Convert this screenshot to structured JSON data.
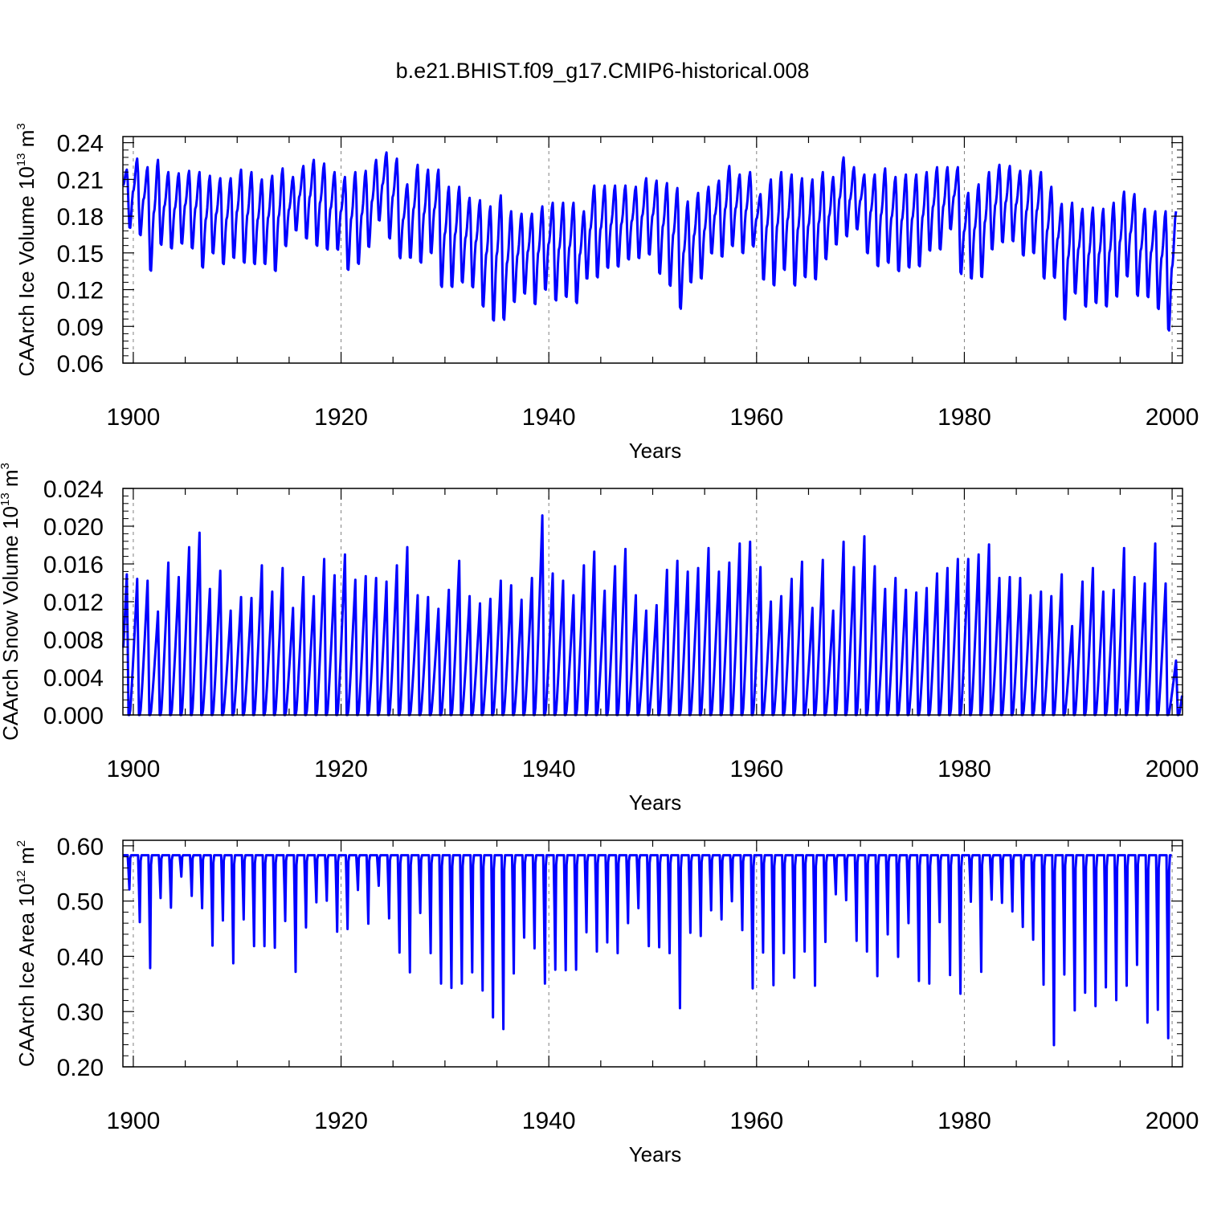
{
  "title": "b.e21.BHIST.f09_g17.CMIP6-historical.008",
  "colors": {
    "series": "#0000ff",
    "axis": "#000000",
    "grid": "#808080"
  },
  "chart_data": [
    {
      "id": "ice-volume",
      "type": "line",
      "ylabel": {
        "text": "CAArch Ice Volume 10",
        "exp": "13",
        "unit": " m",
        "unit_exp": "3"
      },
      "xlabel": "Years",
      "xlim": [
        1899.0,
        2001.0
      ],
      "ylim": [
        0.06,
        0.245
      ],
      "yticks": [
        0.06,
        0.09,
        0.12,
        0.15,
        0.18,
        0.21,
        0.24
      ],
      "ytick_labels": [
        "0.06",
        "0.09",
        "0.12",
        "0.15",
        "0.18",
        "0.21",
        "0.24"
      ],
      "xticks": [
        1900,
        1920,
        1940,
        1960,
        1980,
        2000
      ],
      "xtick_labels": [
        "1900",
        "1920",
        "1940",
        "1960",
        "1980",
        "2000"
      ],
      "series": [
        {
          "name": "CAArch Ice Volume",
          "start_year": 1899,
          "annual_max": [
            0.218,
            0.227,
            0.22,
            0.226,
            0.216,
            0.215,
            0.217,
            0.216,
            0.213,
            0.211,
            0.211,
            0.218,
            0.216,
            0.21,
            0.213,
            0.219,
            0.212,
            0.221,
            0.226,
            0.223,
            0.216,
            0.212,
            0.216,
            0.217,
            0.226,
            0.232,
            0.227,
            0.206,
            0.222,
            0.218,
            0.218,
            0.204,
            0.204,
            0.195,
            0.193,
            0.188,
            0.197,
            0.184,
            0.182,
            0.182,
            0.188,
            0.191,
            0.191,
            0.191,
            0.184,
            0.205,
            0.205,
            0.205,
            0.205,
            0.204,
            0.211,
            0.209,
            0.207,
            0.203,
            0.192,
            0.199,
            0.204,
            0.209,
            0.221,
            0.214,
            0.216,
            0.198,
            0.21,
            0.216,
            0.214,
            0.211,
            0.21,
            0.216,
            0.212,
            0.228,
            0.22,
            0.214,
            0.214,
            0.219,
            0.212,
            0.214,
            0.214,
            0.216,
            0.22,
            0.22,
            0.22,
            0.199,
            0.206,
            0.216,
            0.222,
            0.221,
            0.217,
            0.217,
            0.216,
            0.204,
            0.19,
            0.191,
            0.186,
            0.187,
            0.186,
            0.191,
            0.2,
            0.198,
            0.186,
            0.184,
            0.184,
            0.184
          ],
          "annual_min": [
            0.169,
            0.163,
            0.133,
            0.155,
            0.152,
            0.156,
            0.152,
            0.136,
            0.148,
            0.139,
            0.144,
            0.14,
            0.139,
            0.139,
            0.133,
            0.154,
            0.167,
            0.16,
            0.154,
            0.151,
            0.151,
            0.134,
            0.139,
            0.153,
            0.175,
            0.16,
            0.144,
            0.144,
            0.14,
            0.148,
            0.12,
            0.12,
            0.124,
            0.12,
            0.104,
            0.092,
            0.093,
            0.108,
            0.115,
            0.106,
            0.118,
            0.109,
            0.112,
            0.107,
            0.127,
            0.128,
            0.136,
            0.137,
            0.143,
            0.144,
            0.147,
            0.131,
            0.121,
            0.102,
            0.124,
            0.127,
            0.148,
            0.145,
            0.154,
            0.148,
            0.154,
            0.126,
            0.121,
            0.134,
            0.121,
            0.128,
            0.126,
            0.143,
            0.155,
            0.162,
            0.168,
            0.148,
            0.137,
            0.14,
            0.133,
            0.136,
            0.137,
            0.15,
            0.151,
            0.168,
            0.131,
            0.127,
            0.128,
            0.151,
            0.157,
            0.158,
            0.146,
            0.148,
            0.127,
            0.128,
            0.093,
            0.115,
            0.104,
            0.107,
            0.104,
            0.112,
            0.129,
            0.113,
            0.112,
            0.102,
            0.084
          ]
        }
      ]
    },
    {
      "id": "snow-volume",
      "type": "line",
      "ylabel": {
        "text": "CAArch Snow Volume 10",
        "exp": "13",
        "unit": " m",
        "unit_exp": "3"
      },
      "xlabel": "Years",
      "xlim": [
        1899.0,
        2001.0
      ],
      "ylim": [
        0.0,
        0.024
      ],
      "yticks": [
        0.0,
        0.004,
        0.008,
        0.012,
        0.016,
        0.02,
        0.024
      ],
      "ytick_labels": [
        "0.000",
        "0.004",
        "0.008",
        "0.012",
        "0.016",
        "0.020",
        "0.024"
      ],
      "xticks": [
        1900,
        1920,
        1940,
        1960,
        1980,
        2000
      ],
      "xtick_labels": [
        "1900",
        "1920",
        "1940",
        "1960",
        "1980",
        "2000"
      ],
      "series": [
        {
          "name": "CAArch Snow Volume",
          "start_year": 1899,
          "annual_max": [
            0.0155,
            0.015,
            0.0148,
            0.0114,
            0.0168,
            0.0152,
            0.0185,
            0.0201,
            0.0139,
            0.0159,
            0.0115,
            0.013,
            0.0129,
            0.0165,
            0.0136,
            0.0162,
            0.0118,
            0.0152,
            0.0131,
            0.0172,
            0.0154,
            0.0177,
            0.0149,
            0.0153,
            0.0151,
            0.0147,
            0.0165,
            0.0185,
            0.0132,
            0.013,
            0.0117,
            0.0138,
            0.017,
            0.0131,
            0.0123,
            0.0128,
            0.0148,
            0.0143,
            0.0127,
            0.0151,
            0.022,
            0.0156,
            0.0148,
            0.0132,
            0.0165,
            0.018,
            0.0137,
            0.0164,
            0.0183,
            0.0132,
            0.0115,
            0.0121,
            0.016,
            0.017,
            0.0158,
            0.0162,
            0.0184,
            0.0158,
            0.0168,
            0.0189,
            0.0191,
            0.0163,
            0.0125,
            0.0131,
            0.015,
            0.0169,
            0.0118,
            0.0171,
            0.0115,
            0.0191,
            0.0163,
            0.0197,
            0.0164,
            0.0139,
            0.0151,
            0.0138,
            0.0135,
            0.014,
            0.0156,
            0.0162,
            0.0172,
            0.0172,
            0.0177,
            0.0188,
            0.0151,
            0.0152,
            0.0151,
            0.0132,
            0.0136,
            0.0131,
            0.0155,
            0.0098,
            0.0147,
            0.0162,
            0.0136,
            0.0138,
            0.0184,
            0.0152,
            0.0145,
            0.0189,
            0.0145,
            0.006
          ]
        }
      ]
    },
    {
      "id": "ice-area",
      "type": "line",
      "ylabel": {
        "text": "CAArch Ice Area 10",
        "exp": "12",
        "unit": " m",
        "unit_exp": "2"
      },
      "xlabel": "Years",
      "xlim": [
        1899.0,
        2001.0
      ],
      "ylim": [
        0.2,
        0.61
      ],
      "yticks": [
        0.2,
        0.3,
        0.4,
        0.5,
        0.6
      ],
      "ytick_labels": [
        "0.20",
        "0.30",
        "0.40",
        "0.50",
        "0.60"
      ],
      "xticks": [
        1900,
        1920,
        1940,
        1960,
        1980,
        2000
      ],
      "xtick_labels": [
        "1900",
        "1920",
        "1940",
        "1960",
        "1980",
        "2000"
      ],
      "series": [
        {
          "name": "CAArch Ice Area",
          "start_year": 1899,
          "max_value": 0.583,
          "annual_min": [
            0.519,
            0.458,
            0.372,
            0.503,
            0.485,
            0.543,
            0.507,
            0.484,
            0.414,
            0.461,
            0.381,
            0.463,
            0.413,
            0.413,
            0.41,
            0.46,
            0.365,
            0.448,
            0.495,
            0.498,
            0.44,
            0.445,
            0.518,
            0.455,
            0.526,
            0.465,
            0.401,
            0.364,
            0.475,
            0.4,
            0.343,
            0.335,
            0.343,
            0.364,
            0.33,
            0.28,
            0.258,
            0.362,
            0.429,
            0.409,
            0.343,
            0.369,
            0.368,
            0.369,
            0.439,
            0.403,
            0.42,
            0.4,
            0.456,
            0.484,
            0.413,
            0.411,
            0.4,
            0.297,
            0.438,
            0.432,
            0.48,
            0.463,
            0.497,
            0.443,
            0.334,
            0.401,
            0.34,
            0.4,
            0.354,
            0.403,
            0.339,
            0.421,
            0.51,
            0.499,
            0.423,
            0.403,
            0.357,
            0.435,
            0.393,
            0.456,
            0.348,
            0.343,
            0.458,
            0.359,
            0.324,
            0.496,
            0.365,
            0.5,
            0.494,
            0.478,
            0.449,
            0.425,
            0.341,
            0.228,
            0.36,
            0.293,
            0.326,
            0.301,
            0.336,
            0.312,
            0.339,
            0.378,
            0.27,
            0.294,
            0.241
          ]
        }
      ]
    }
  ]
}
